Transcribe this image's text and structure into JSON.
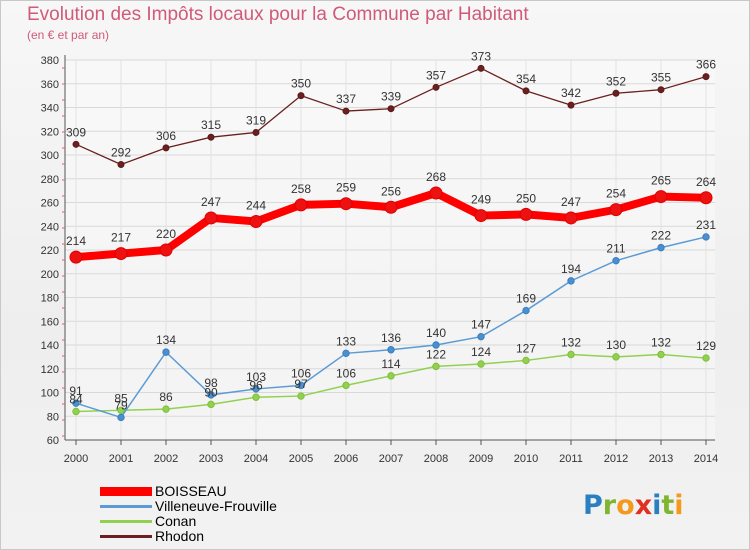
{
  "chart_data": {
    "type": "line",
    "title": "Evolution des Impôts locaux pour la Commune par Habitant",
    "subtitle": "(en € et par an)",
    "xlabel": "",
    "ylabel": "",
    "x": [
      "2000",
      "2001",
      "2002",
      "2003",
      "2004",
      "2005",
      "2006",
      "2007",
      "2008",
      "2009",
      "2010",
      "2011",
      "2012",
      "2013",
      "2014"
    ],
    "ylim": [
      60,
      380
    ],
    "yticks": [
      60,
      80,
      100,
      120,
      140,
      160,
      180,
      200,
      220,
      240,
      260,
      280,
      300,
      320,
      340,
      360,
      380
    ],
    "grid": true,
    "legend_position": "bottom-left",
    "series": [
      {
        "name": "BOISSEAU",
        "color": "#ff0000",
        "values": [
          214,
          217,
          220,
          247,
          244,
          258,
          259,
          256,
          268,
          249,
          250,
          247,
          254,
          265,
          264
        ]
      },
      {
        "name": "Villeneuve-Frouville",
        "color": "#5a9bd5",
        "values": [
          91,
          79,
          134,
          98,
          103,
          106,
          133,
          136,
          140,
          147,
          169,
          194,
          211,
          222,
          231
        ]
      },
      {
        "name": "Conan",
        "color": "#92d050",
        "values": [
          84,
          85,
          86,
          90,
          96,
          97,
          106,
          114,
          122,
          124,
          127,
          132,
          130,
          132,
          129
        ]
      },
      {
        "name": "Rhodon",
        "color": "#6b2020",
        "values": [
          309,
          292,
          306,
          315,
          319,
          350,
          337,
          339,
          357,
          373,
          354,
          342,
          352,
          355,
          366
        ]
      }
    ],
    "data_labels": [
      [
        214,
        217,
        220,
        247,
        244,
        258,
        259,
        256,
        268,
        249,
        250,
        247,
        254,
        265,
        264
      ],
      [
        91,
        79,
        134,
        98,
        103,
        106,
        133,
        136,
        140,
        147,
        169,
        194,
        211,
        222,
        231
      ],
      [
        84,
        85,
        86,
        90,
        96,
        97,
        106,
        114,
        122,
        124,
        127,
        132,
        130,
        132,
        129
      ],
      [
        309,
        292,
        306,
        315,
        319,
        350,
        337,
        339,
        357,
        373,
        354,
        342,
        352,
        355,
        366
      ]
    ]
  },
  "legend": {
    "items": [
      {
        "label": "BOISSEAU",
        "color": "#ff0000"
      },
      {
        "label": "Villeneuve-Frouville",
        "color": "#5a9bd5"
      },
      {
        "label": "Conan",
        "color": "#92d050"
      },
      {
        "label": "Rhodon",
        "color": "#6b2020"
      }
    ]
  },
  "logo": {
    "text": "Proxiti",
    "letters": [
      {
        "ch": "P",
        "color": "#2a7fc0"
      },
      {
        "ch": "r",
        "color": "#7fb532"
      },
      {
        "ch": "o",
        "color": "#f39a1d"
      },
      {
        "ch": "x",
        "color": "#e03020"
      },
      {
        "ch": "i",
        "color": "#2a7fc0"
      },
      {
        "ch": "t",
        "color": "#7fb532"
      },
      {
        "ch": "i",
        "color": "#f39a1d"
      }
    ]
  }
}
